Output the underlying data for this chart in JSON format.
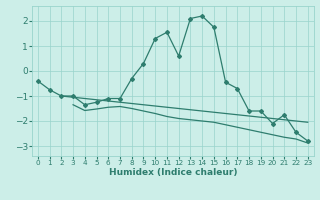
{
  "xlabel": "Humidex (Indice chaleur)",
  "ylabel": "",
  "background_color": "#cceee8",
  "line_color": "#2e7d6e",
  "xlim": [
    -0.5,
    23.5
  ],
  "ylim": [
    -3.4,
    2.6
  ],
  "xticks": [
    0,
    1,
    2,
    3,
    4,
    5,
    6,
    7,
    8,
    9,
    10,
    11,
    12,
    13,
    14,
    15,
    16,
    17,
    18,
    19,
    20,
    21,
    22,
    23
  ],
  "yticks": [
    -3,
    -2,
    -1,
    0,
    1,
    2
  ],
  "grid_color": "#99d4cc",
  "curve1_x": [
    0,
    1,
    2,
    3,
    4,
    5,
    6,
    7,
    8,
    9,
    10,
    11,
    12,
    13,
    14,
    15,
    16,
    17,
    18,
    19,
    20,
    21,
    22,
    23
  ],
  "curve1_y": [
    -0.4,
    -0.75,
    -1.0,
    -1.0,
    -1.35,
    -1.25,
    -1.1,
    -1.1,
    -0.3,
    0.3,
    1.3,
    1.55,
    0.6,
    2.1,
    2.2,
    1.75,
    -0.45,
    -0.7,
    -1.6,
    -1.6,
    -2.1,
    -1.75,
    -2.45,
    -2.8
  ],
  "curve2_x": [
    2,
    3,
    4,
    5,
    6,
    7,
    8,
    9,
    10,
    11,
    12,
    13,
    14,
    15,
    16,
    17,
    18,
    19,
    20,
    21,
    22,
    23
  ],
  "curve2_y": [
    -1.0,
    -1.05,
    -1.1,
    -1.15,
    -1.2,
    -1.25,
    -1.3,
    -1.35,
    -1.4,
    -1.45,
    -1.5,
    -1.55,
    -1.6,
    -1.65,
    -1.7,
    -1.75,
    -1.8,
    -1.85,
    -1.9,
    -1.95,
    -2.0,
    -2.05
  ],
  "curve3_x": [
    3,
    4,
    5,
    6,
    7,
    8,
    9,
    10,
    11,
    12,
    13,
    14,
    15,
    16,
    17,
    18,
    19,
    20,
    21,
    22,
    23
  ],
  "curve3_y": [
    -1.35,
    -1.58,
    -1.52,
    -1.45,
    -1.42,
    -1.5,
    -1.6,
    -1.7,
    -1.82,
    -1.9,
    -1.95,
    -2.0,
    -2.05,
    -2.15,
    -2.25,
    -2.35,
    -2.45,
    -2.55,
    -2.65,
    -2.72,
    -2.88
  ],
  "xlabel_color": "#2e7d6e",
  "tick_color": "#2e7d6e",
  "xlabel_fontsize": 6.5,
  "ytick_fontsize": 6.5,
  "xtick_fontsize": 5.2
}
